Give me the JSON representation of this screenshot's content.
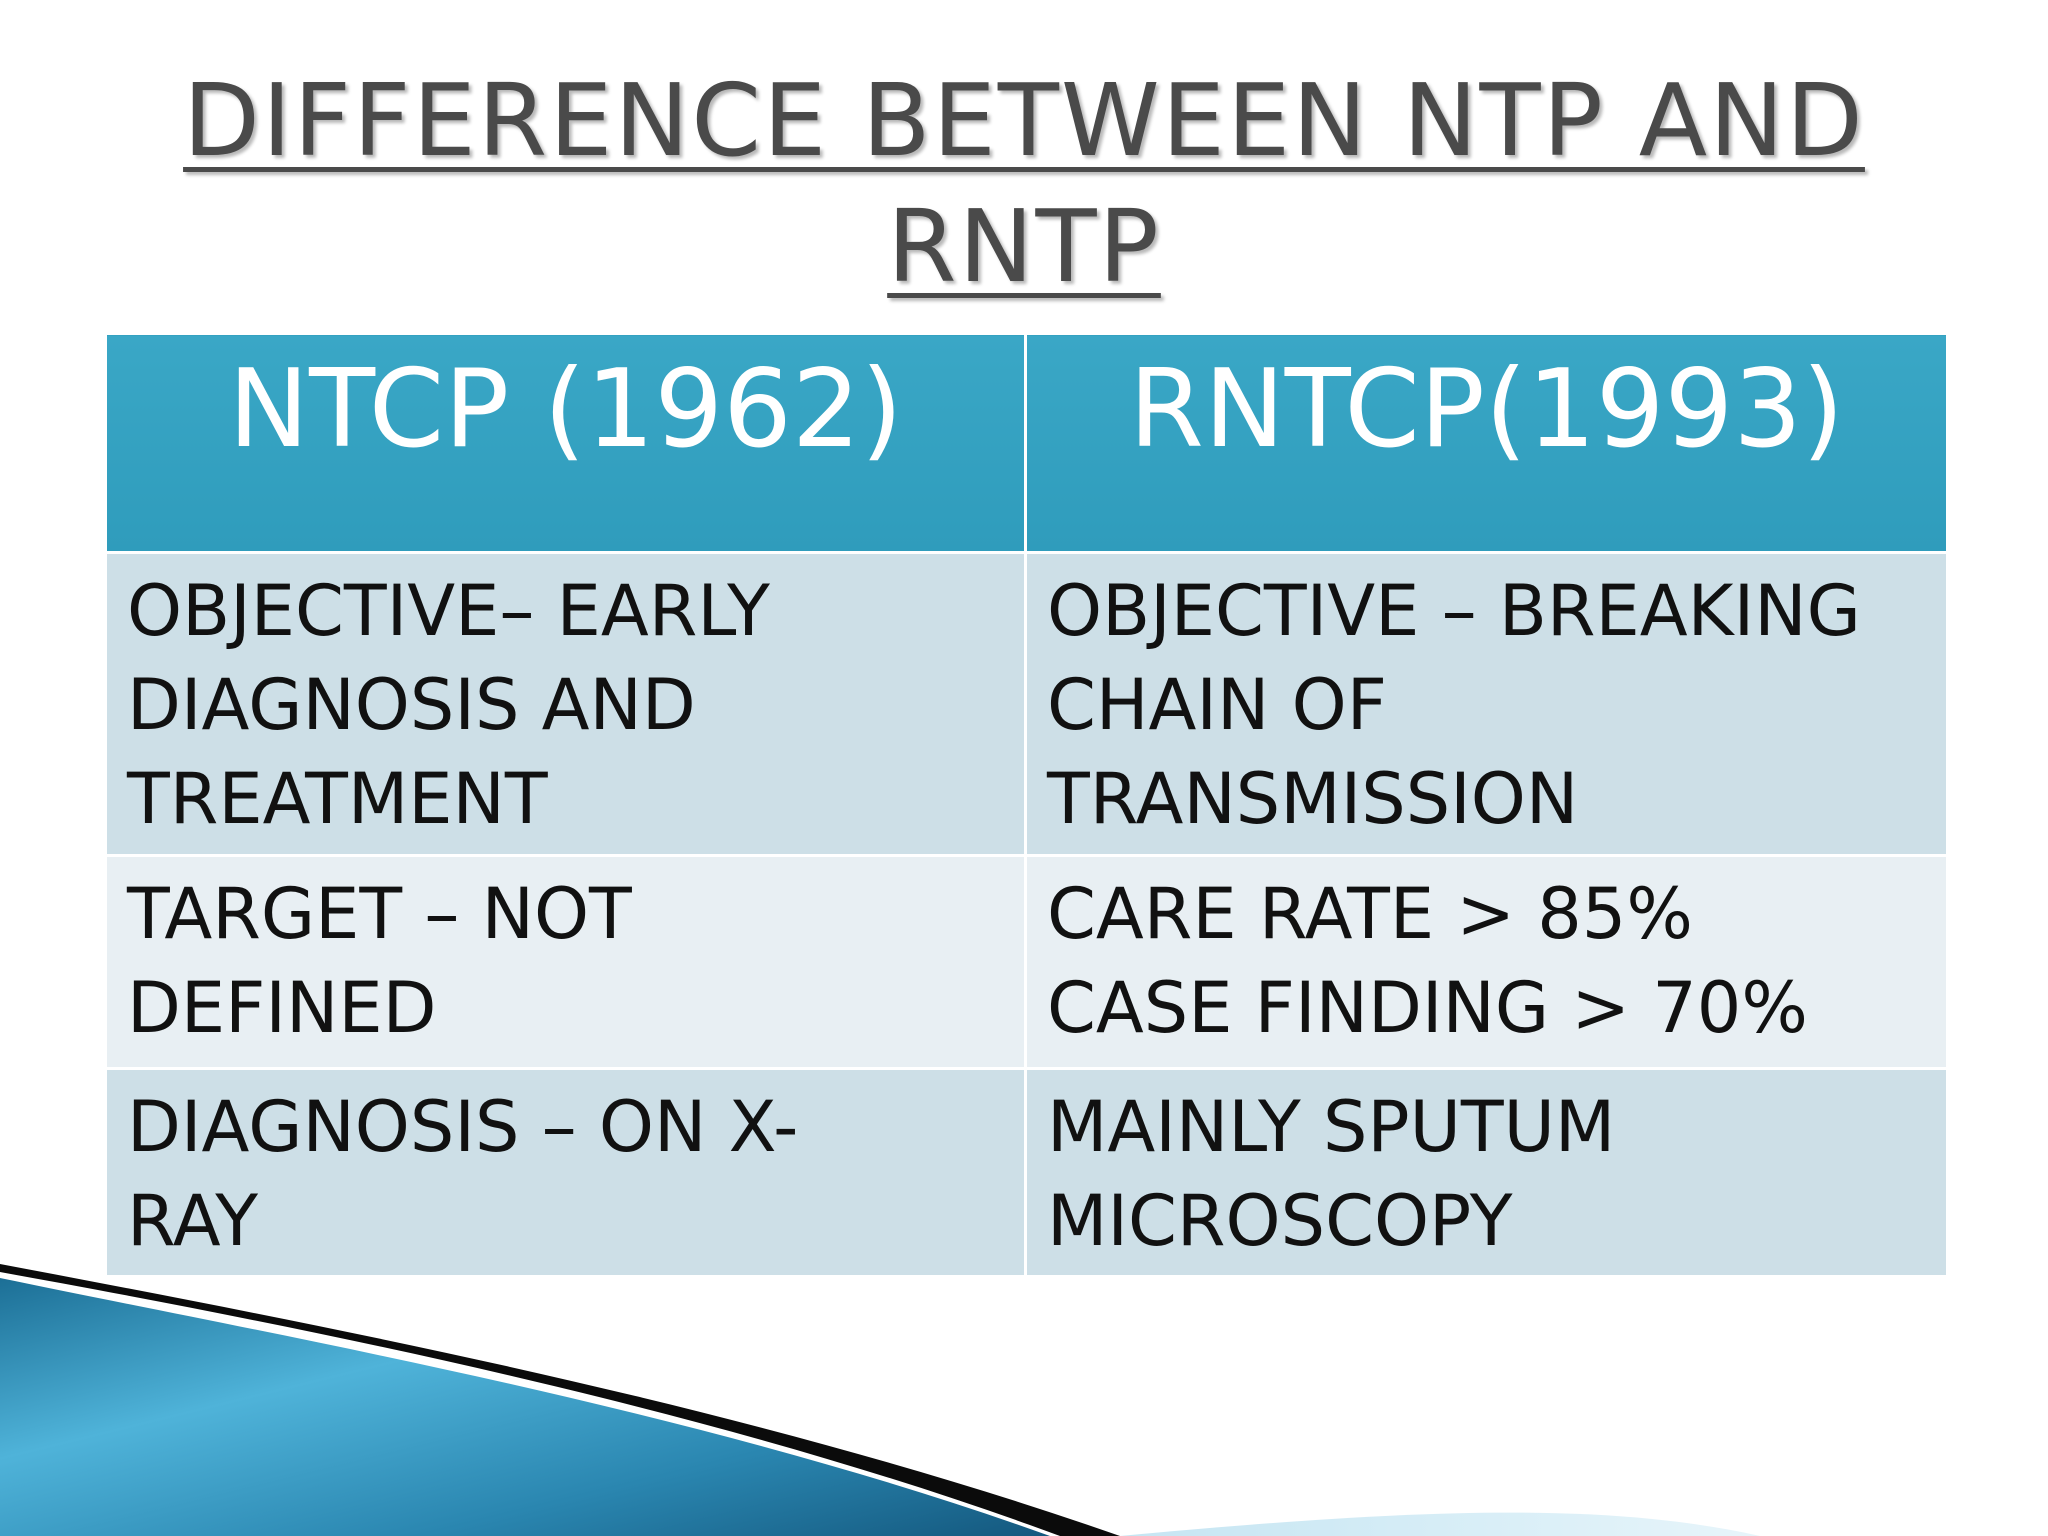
{
  "slide": {
    "title_line1": "DIFFERENCE BETWEEN NTP AND",
    "title_line2": "RNTP"
  },
  "table": {
    "headers": [
      "NTCP (1962)",
      "RNTCP(1993)"
    ],
    "rows": [
      [
        "OBJECTIVE– EARLY\nDIAGNOSIS AND\nTREATMENT",
        "OBJECTIVE – BREAKING\nCHAIN OF\nTRANSMISSION"
      ],
      [
        "TARGET – NOT\nDEFINED",
        "CARE RATE > 85%\nCASE FINDING > 70%"
      ],
      [
        "DIAGNOSIS –  ON  X-\nRAY",
        "MAINLY   SPUTUM\nMICROSCOPY"
      ]
    ]
  },
  "colors": {
    "header_bg": "#3aa7c6",
    "row_dark": "#cddfe7",
    "row_light": "#e8eff3",
    "title_text": "#4a4a4a"
  }
}
